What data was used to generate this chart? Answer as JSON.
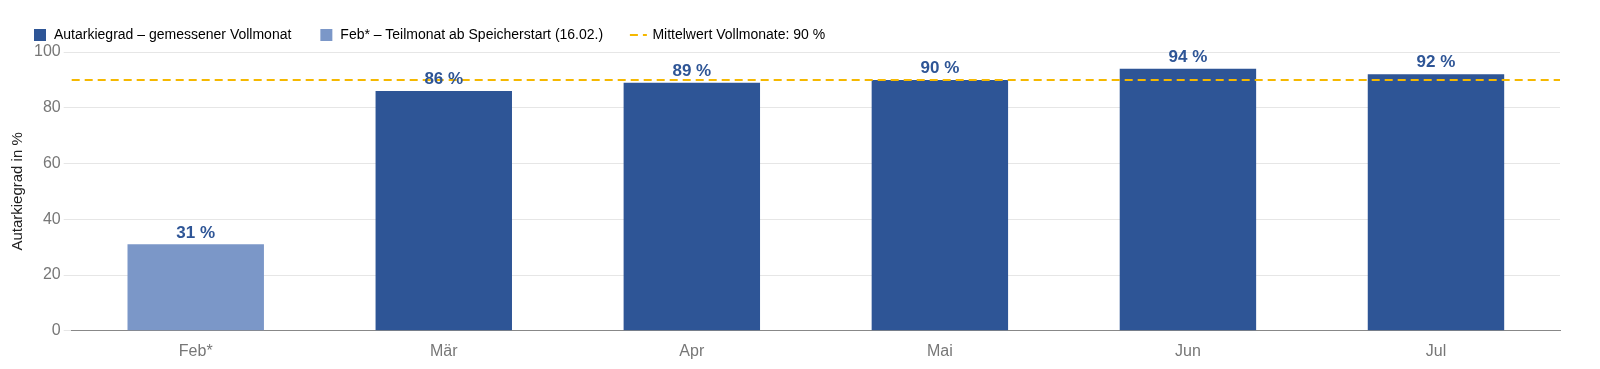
{
  "chart_data": {
    "type": "bar",
    "ylabel": "Autarkiegrad in %",
    "categories": [
      "Feb*",
      "Mär",
      "Apr",
      "Mai",
      "Jun",
      "Jul"
    ],
    "series": [
      {
        "name": "Autarkiegrad – gemessener Vollmonat",
        "color": "#2e5596",
        "values": [
          null,
          86,
          89,
          90,
          94,
          92
        ],
        "value_labels": [
          null,
          "86 %",
          "89 %",
          "90 %",
          "94 %",
          "92 %"
        ]
      },
      {
        "name": "Feb* – Teilmonat ab Speicherstart (16.02.)",
        "color": "#7b97c8",
        "values": [
          31,
          null,
          null,
          null,
          null,
          null
        ],
        "value_labels": [
          "31 %",
          null,
          null,
          null,
          null,
          null
        ]
      }
    ],
    "ref_lines": [
      {
        "axis": "y",
        "value": 90,
        "label": "Mittelwert Vollmonate: 90 %",
        "color": "#f5b800",
        "line_style": "dashed"
      }
    ],
    "ylim": [
      0,
      100
    ],
    "yticks": [
      0,
      20,
      40,
      60,
      80,
      100
    ],
    "grid": "y",
    "legend": "top left"
  }
}
